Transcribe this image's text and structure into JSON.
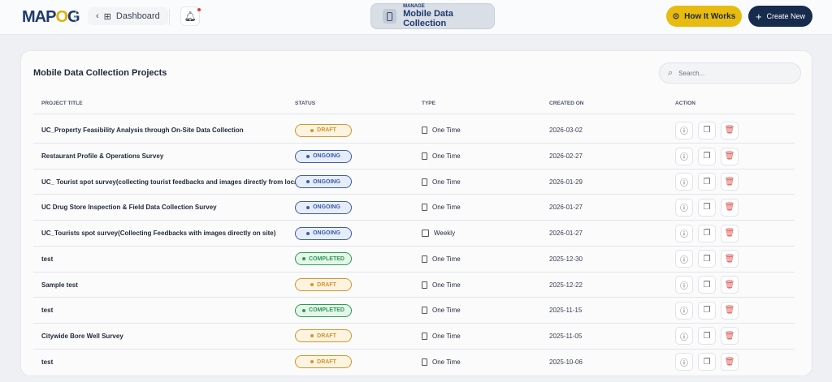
{
  "header": {
    "logo": "MAPOG",
    "dashboard_label": "Dashboard",
    "manage_small": "MANAGE",
    "manage_title": "Mobile Data Collection",
    "how_label": "How It Works",
    "create_label": "Create New"
  },
  "colors": {
    "draft": "#d4952a",
    "ongoing": "#3b5cae",
    "completed": "#2e9a52",
    "navy": "#172b4d",
    "yellow": "#e7bb10"
  },
  "card": {
    "title": "Mobile Data Collection Projects",
    "search_placeholder": "Search..."
  },
  "columns": [
    "PROJECT TITLE",
    "STATUS",
    "TYPE",
    "CREATED ON",
    "ACTION"
  ],
  "rows": [
    {
      "title": "UC_Property Feasibility Analysis through On-Site Data Collection",
      "status": "DRAFT",
      "type": "One Time",
      "created": "2026-03-02"
    },
    {
      "title": "Restaurant Profile & Operations Survey",
      "status": "ONGOING",
      "type": "One Time",
      "created": "2026-02-27"
    },
    {
      "title": "UC_ Tourist spot survey(collecting tourist feedbacks and images directly from location)",
      "status": "ONGOING",
      "type": "One Time",
      "created": "2026-01-29"
    },
    {
      "title": "UC Drug Store Inspection & Field Data Collection Survey",
      "status": "ONGOING",
      "type": "One Time",
      "created": "2026-01-27"
    },
    {
      "title": "UC_Tourists spot survey(Collecting Feedbacks with images directly on site)",
      "status": "ONGOING",
      "type": "Weekly",
      "created": "2026-01-27"
    },
    {
      "title": "test",
      "status": "COMPLETED",
      "type": "One Time",
      "created": "2025-12-30"
    },
    {
      "title": "Sample test",
      "status": "DRAFT",
      "type": "One Time",
      "created": "2025-12-22"
    },
    {
      "title": "test",
      "status": "COMPLETED",
      "type": "One Time",
      "created": "2025-11-15"
    },
    {
      "title": "Citywide Bore Well Survey",
      "status": "DRAFT",
      "type": "One Time",
      "created": "2025-11-05"
    },
    {
      "title": "test",
      "status": "DRAFT",
      "type": "One Time",
      "created": "2025-10-06"
    }
  ]
}
